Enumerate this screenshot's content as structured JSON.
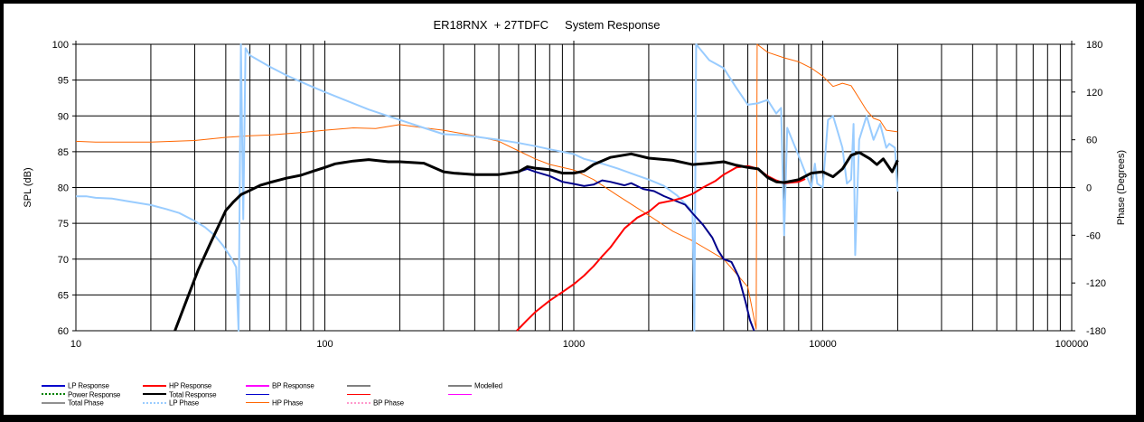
{
  "chart_data": {
    "type": "line",
    "title": "ER18RNX  + 27TDFC     System Response",
    "xlabel": "",
    "ylabel": "SPL (dB)",
    "y2label": "Phase (Degrees)",
    "xscale": "log",
    "xlim": [
      10,
      100000
    ],
    "ylim": [
      60,
      100
    ],
    "y2lim": [
      -180,
      180
    ],
    "grid": true,
    "x_ticks": [
      "10",
      "100",
      "1000",
      "10000",
      "100000"
    ],
    "y_ticks": [
      "100",
      "95",
      "90",
      "85",
      "80",
      "75",
      "70",
      "65",
      "60"
    ],
    "y2_ticks": [
      "180",
      "120",
      "60",
      "0",
      "-60",
      "-120",
      "-180"
    ],
    "legend_position": "bottom",
    "series": [
      {
        "name": "LP Response",
        "axis": "left",
        "color": "#00008B",
        "width": 2,
        "points": [
          [
            550,
            82.0
          ],
          [
            600,
            82.2
          ],
          [
            650,
            82.6
          ],
          [
            700,
            82.2
          ],
          [
            800,
            81.6
          ],
          [
            900,
            80.8
          ],
          [
            1000,
            80.5
          ],
          [
            1100,
            80.2
          ],
          [
            1200,
            80.4
          ],
          [
            1300,
            81.0
          ],
          [
            1400,
            80.8
          ],
          [
            1600,
            80.3
          ],
          [
            1700,
            80.6
          ],
          [
            1900,
            79.8
          ],
          [
            2100,
            79.5
          ],
          [
            2300,
            78.8
          ],
          [
            2500,
            78.3
          ],
          [
            2800,
            77.6
          ],
          [
            3000,
            76.4
          ],
          [
            3300,
            74.8
          ],
          [
            3600,
            73.0
          ],
          [
            3800,
            71.2
          ],
          [
            4000,
            70.0
          ],
          [
            4300,
            69.6
          ],
          [
            4600,
            67.5
          ],
          [
            4900,
            64.0
          ],
          [
            5100,
            61.5
          ],
          [
            5300,
            60.0
          ]
        ]
      },
      {
        "name": "HP Response",
        "axis": "left",
        "color": "#FF0000",
        "width": 2,
        "points": [
          [
            590,
            60.0
          ],
          [
            650,
            61.5
          ],
          [
            700,
            62.6
          ],
          [
            800,
            64.2
          ],
          [
            900,
            65.4
          ],
          [
            1000,
            66.5
          ],
          [
            1100,
            67.7
          ],
          [
            1200,
            69.0
          ],
          [
            1300,
            70.4
          ],
          [
            1400,
            71.6
          ],
          [
            1500,
            73.0
          ],
          [
            1600,
            74.3
          ],
          [
            1800,
            75.8
          ],
          [
            2000,
            76.6
          ],
          [
            2200,
            77.8
          ],
          [
            2500,
            78.2
          ],
          [
            2700,
            78.5
          ],
          [
            3000,
            79.1
          ],
          [
            3300,
            80.0
          ],
          [
            3700,
            80.9
          ],
          [
            4000,
            81.8
          ],
          [
            4500,
            82.8
          ],
          [
            5000,
            83.0
          ],
          [
            5500,
            82.6
          ],
          [
            6000,
            81.6
          ],
          [
            6500,
            81.0
          ],
          [
            7000,
            80.6
          ],
          [
            8000,
            80.8
          ],
          [
            8500,
            81.2
          ]
        ]
      },
      {
        "name": "Total Response",
        "axis": "left",
        "color": "#000000",
        "width": 3,
        "points": [
          [
            25,
            60.0
          ],
          [
            28,
            64.5
          ],
          [
            31,
            68.5
          ],
          [
            35,
            72.5
          ],
          [
            40,
            76.8
          ],
          [
            43,
            78.0
          ],
          [
            46,
            79.0
          ],
          [
            50,
            79.6
          ],
          [
            55,
            80.3
          ],
          [
            60,
            80.7
          ],
          [
            70,
            81.3
          ],
          [
            80,
            81.7
          ],
          [
            90,
            82.3
          ],
          [
            100,
            82.8
          ],
          [
            110,
            83.3
          ],
          [
            130,
            83.7
          ],
          [
            150,
            83.9
          ],
          [
            180,
            83.6
          ],
          [
            200,
            83.6
          ],
          [
            250,
            83.4
          ],
          [
            300,
            82.2
          ],
          [
            330,
            82.0
          ],
          [
            400,
            81.8
          ],
          [
            500,
            81.8
          ],
          [
            600,
            82.2
          ],
          [
            650,
            82.9
          ],
          [
            700,
            82.7
          ],
          [
            800,
            82.5
          ],
          [
            900,
            82.0
          ],
          [
            1000,
            82.0
          ],
          [
            1100,
            82.3
          ],
          [
            1200,
            83.2
          ],
          [
            1400,
            84.2
          ],
          [
            1700,
            84.7
          ],
          [
            2000,
            84.1
          ],
          [
            2500,
            83.8
          ],
          [
            3000,
            83.2
          ],
          [
            3500,
            83.4
          ],
          [
            4000,
            83.6
          ],
          [
            4500,
            83.1
          ],
          [
            5000,
            82.8
          ],
          [
            5500,
            82.6
          ],
          [
            6000,
            81.4
          ],
          [
            6500,
            80.8
          ],
          [
            7000,
            80.7
          ],
          [
            8000,
            81.1
          ],
          [
            9000,
            82.0
          ],
          [
            10000,
            82.2
          ],
          [
            11000,
            81.5
          ],
          [
            12000,
            82.6
          ],
          [
            13000,
            84.5
          ],
          [
            14000,
            84.9
          ],
          [
            15500,
            84.0
          ],
          [
            16500,
            83.2
          ],
          [
            17500,
            84.0
          ],
          [
            19000,
            82.2
          ],
          [
            20000,
            83.8
          ]
        ]
      },
      {
        "name": "LP Phase",
        "axis": "right",
        "color": "#99CCFF",
        "width": 2,
        "points": [
          [
            10,
            -11
          ],
          [
            11,
            -11
          ],
          [
            12,
            -13
          ],
          [
            14,
            -14
          ],
          [
            16,
            -17
          ],
          [
            20,
            -22
          ],
          [
            23,
            -27
          ],
          [
            26,
            -32
          ],
          [
            30,
            -42
          ],
          [
            33,
            -50
          ],
          [
            36,
            -60
          ],
          [
            39,
            -73
          ],
          [
            42,
            -88
          ],
          [
            44,
            -100
          ],
          [
            45,
            -180
          ],
          [
            46,
            180
          ],
          [
            47,
            -40
          ],
          [
            48,
            175
          ],
          [
            50,
            166
          ],
          [
            60,
            152
          ],
          [
            70,
            141
          ],
          [
            80,
            133
          ],
          [
            90,
            126
          ],
          [
            100,
            120
          ],
          [
            120,
            110
          ],
          [
            150,
            98
          ],
          [
            200,
            85
          ],
          [
            250,
            75
          ],
          [
            300,
            67
          ],
          [
            350,
            66
          ],
          [
            400,
            64
          ],
          [
            500,
            60
          ],
          [
            600,
            56
          ],
          [
            700,
            52
          ],
          [
            800,
            48
          ],
          [
            1000,
            42
          ],
          [
            1100,
            36
          ],
          [
            1300,
            30
          ],
          [
            1500,
            24
          ],
          [
            1800,
            15
          ],
          [
            2000,
            10
          ],
          [
            2300,
            2
          ],
          [
            2600,
            -10
          ],
          [
            3000,
            -30
          ],
          [
            3050,
            -180
          ],
          [
            3100,
            180
          ],
          [
            3500,
            160
          ],
          [
            4000,
            150
          ],
          [
            4500,
            125
          ],
          [
            5000,
            104
          ],
          [
            5500,
            106
          ],
          [
            6000,
            110
          ],
          [
            6500,
            93
          ],
          [
            6800,
            100
          ],
          [
            7000,
            -60
          ],
          [
            7200,
            75
          ],
          [
            8000,
            40
          ],
          [
            8600,
            15
          ],
          [
            9000,
            0
          ],
          [
            9300,
            30
          ],
          [
            9500,
            5
          ],
          [
            10000,
            0
          ],
          [
            10500,
            85
          ],
          [
            11000,
            90
          ],
          [
            12000,
            50
          ],
          [
            12500,
            5
          ],
          [
            13000,
            10
          ],
          [
            13300,
            80
          ],
          [
            13500,
            -85
          ],
          [
            14000,
            60
          ],
          [
            15000,
            90
          ],
          [
            16000,
            60
          ],
          [
            17000,
            80
          ],
          [
            18000,
            50
          ],
          [
            18500,
            55
          ],
          [
            19500,
            50
          ],
          [
            20000,
            -5
          ]
        ]
      },
      {
        "name": "HP Phase",
        "axis": "right",
        "color": "#FF6600",
        "width": 1,
        "points": [
          [
            10,
            58
          ],
          [
            12,
            57
          ],
          [
            20,
            57
          ],
          [
            30,
            59
          ],
          [
            40,
            63
          ],
          [
            50,
            65
          ],
          [
            60,
            66
          ],
          [
            80,
            69
          ],
          [
            100,
            72
          ],
          [
            130,
            75
          ],
          [
            160,
            74
          ],
          [
            200,
            79
          ],
          [
            250,
            75
          ],
          [
            300,
            72
          ],
          [
            400,
            65
          ],
          [
            500,
            58
          ],
          [
            600,
            46
          ],
          [
            700,
            36
          ],
          [
            800,
            29
          ],
          [
            1000,
            22
          ],
          [
            1200,
            10
          ],
          [
            1500,
            -10
          ],
          [
            2000,
            -35
          ],
          [
            2500,
            -55
          ],
          [
            3000,
            -67
          ],
          [
            4000,
            -90
          ],
          [
            5000,
            -125
          ],
          [
            5400,
            -178
          ],
          [
            5450,
            180
          ],
          [
            6000,
            170
          ],
          [
            7000,
            163
          ],
          [
            8000,
            158
          ],
          [
            9000,
            150
          ],
          [
            10000,
            140
          ],
          [
            11000,
            127
          ],
          [
            12000,
            131
          ],
          [
            13000,
            128
          ],
          [
            14000,
            112
          ],
          [
            15000,
            97
          ],
          [
            16000,
            87
          ],
          [
            17000,
            84
          ],
          [
            18000,
            72
          ],
          [
            20000,
            70
          ]
        ]
      }
    ]
  },
  "legend": {
    "items": [
      {
        "label": "LP Response",
        "color": "#0000CC",
        "style": "solid",
        "col": 0,
        "row": 0
      },
      {
        "label": "HP Response",
        "color": "#FF0000",
        "style": "solid",
        "col": 1,
        "row": 0
      },
      {
        "label": "BP Response",
        "color": "#FF00FF",
        "style": "solid",
        "col": 2,
        "row": 0
      },
      {
        "label": "",
        "color": "#808080",
        "style": "solid",
        "col": 3,
        "row": 0
      },
      {
        "label": "Modelled",
        "color": "#808080",
        "style": "solid",
        "col": 4,
        "row": 0
      },
      {
        "label": "Power Response",
        "color": "#008000",
        "style": "dotted",
        "col": 0,
        "row": 1
      },
      {
        "label": "Total Response",
        "color": "#000000",
        "style": "solid",
        "col": 1,
        "row": 1
      },
      {
        "label": "",
        "color": "#0000CC",
        "style": "thin",
        "col": 2,
        "row": 1
      },
      {
        "label": "",
        "color": "#FF0000",
        "style": "thin",
        "col": 3,
        "row": 1
      },
      {
        "label": "",
        "color": "#FF00FF",
        "style": "thin",
        "col": 4,
        "row": 1
      },
      {
        "label": "Total Phase",
        "color": "#909090",
        "style": "solid",
        "col": 0,
        "row": 2
      },
      {
        "label": "LP Phase",
        "color": "#99CCFF",
        "style": "dotted",
        "col": 1,
        "row": 2
      },
      {
        "label": "HP Phase",
        "color": "#FF6600",
        "style": "thin",
        "col": 2,
        "row": 2
      },
      {
        "label": "BP Phase",
        "color": "#FF99CC",
        "style": "dotted",
        "col": 3,
        "row": 2
      }
    ]
  }
}
